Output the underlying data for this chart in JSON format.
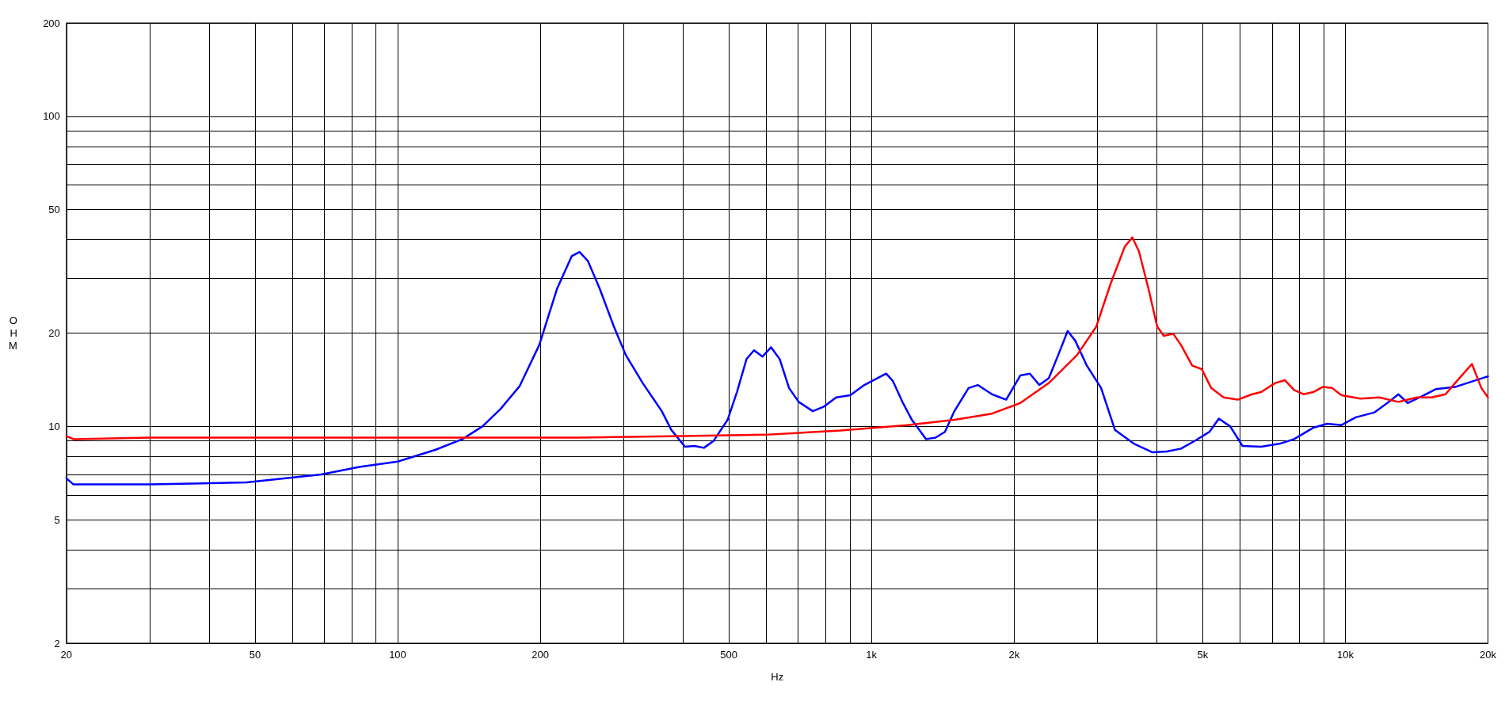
{
  "chart_data": {
    "type": "line",
    "xlabel": "Hz",
    "ylabel": "OHM",
    "log": "xy",
    "grid": true,
    "marker": "none",
    "line_style": "solid",
    "xlim": [
      20,
      20000
    ],
    "ylim": [
      2,
      200
    ],
    "xticks": [
      20,
      {
        "value": 30,
        "label": null
      },
      {
        "value": 40,
        "label": null
      },
      50,
      {
        "value": 60,
        "label": null
      },
      {
        "value": 70,
        "label": null
      },
      {
        "value": 80,
        "label": null
      },
      {
        "value": 90,
        "label": null
      },
      100,
      200,
      {
        "value": 300,
        "label": null
      },
      {
        "value": 400,
        "label": null
      },
      500,
      {
        "value": 600,
        "label": null
      },
      {
        "value": 700,
        "label": null
      },
      {
        "value": 800,
        "label": null
      },
      {
        "value": 900,
        "label": null
      },
      {
        "value": 1000,
        "label": "1k"
      },
      {
        "value": 2000,
        "label": "2k"
      },
      {
        "value": 3000,
        "label": null
      },
      {
        "value": 4000,
        "label": null
      },
      {
        "value": 5000,
        "label": "5k"
      },
      {
        "value": 6000,
        "label": null
      },
      {
        "value": 7000,
        "label": null
      },
      {
        "value": 8000,
        "label": null
      },
      {
        "value": 9000,
        "label": null
      },
      {
        "value": 10000,
        "label": "10k"
      },
      {
        "value": 20000,
        "label": "20k"
      }
    ],
    "yticks": [
      2,
      {
        "value": 3,
        "label": null
      },
      {
        "value": 4,
        "label": null
      },
      5,
      {
        "value": 6,
        "label": null
      },
      {
        "value": 7,
        "label": null
      },
      {
        "value": 8,
        "label": null
      },
      {
        "value": 9,
        "label": null
      },
      10,
      20,
      {
        "value": 30,
        "label": null
      },
      {
        "value": 40,
        "label": null
      },
      50,
      {
        "value": 60,
        "label": null
      },
      {
        "value": 70,
        "label": null
      },
      {
        "value": 80,
        "label": null
      },
      {
        "value": 90,
        "label": null
      },
      100,
      200
    ],
    "series": [
      {
        "color": "#0000ff",
        "x": [
          20,
          20.7,
          30,
          48,
          69,
          83,
          100,
          120,
          137,
          151,
          165,
          181,
          199,
          217,
          233,
          242,
          252,
          267,
          286,
          303,
          329,
          361,
          378,
          404,
          423,
          443,
          464,
          497,
          520,
          545,
          565,
          589,
          614,
          640,
          670,
          702,
          752,
          795,
          842,
          902,
          966,
          1074,
          1110,
          1162,
          1217,
          1304,
          1365,
          1429,
          1496,
          1603,
          1676,
          1796,
          1924,
          2061,
          2159,
          2260,
          2367,
          2478,
          2594,
          2692,
          2848,
          3052,
          3264,
          3577,
          3920,
          4200,
          4500,
          4822,
          5166,
          5409,
          5716,
          6067,
          6641,
          7278,
          7795,
          8550,
          9160,
          9815,
          10517,
          11530,
          12355,
          12940,
          13540,
          14500,
          15540,
          17030,
          20000
        ],
        "values": [
          6.8,
          6.5,
          6.5,
          6.6,
          7.0,
          7.4,
          7.7,
          8.4,
          9.1,
          10.0,
          11.4,
          13.5,
          18.3,
          27.8,
          35.4,
          36.5,
          34.2,
          27.8,
          21.0,
          17.0,
          13.8,
          11.2,
          9.75,
          8.6,
          8.65,
          8.53,
          8.97,
          10.5,
          12.9,
          16.5,
          17.6,
          16.8,
          18.0,
          16.5,
          13.3,
          12.0,
          11.2,
          11.6,
          12.4,
          12.6,
          13.6,
          14.8,
          14.0,
          12.0,
          10.5,
          9.1,
          9.2,
          9.6,
          11.2,
          13.3,
          13.6,
          12.7,
          12.2,
          14.6,
          14.8,
          13.6,
          14.3,
          17.0,
          20.3,
          18.9,
          15.7,
          13.3,
          9.75,
          8.8,
          8.25,
          8.3,
          8.48,
          9.0,
          9.6,
          10.6,
          10.0,
          8.65,
          8.6,
          8.8,
          9.1,
          9.9,
          10.2,
          10.1,
          10.7,
          11.1,
          12.0,
          12.7,
          11.9,
          12.5,
          13.2,
          13.4,
          14.5
        ]
      },
      {
        "color": "#ff0000",
        "x": [
          20,
          20.7,
          30,
          95,
          238,
          378,
          597,
          861,
          1189,
          1496,
          1796,
          2061,
          2367,
          2716,
          2982,
          3195,
          3424,
          3552,
          3668,
          3842,
          4008,
          4138,
          4334,
          4500,
          4752,
          4977,
          5212,
          5534,
          5930,
          6353,
          6641,
          7111,
          7450,
          7795,
          8163,
          8550,
          8953,
          9380,
          9815,
          10760,
          11800,
          12940,
          14170,
          15190,
          16270,
          17190,
          18500,
          19370,
          20000
        ],
        "values": [
          9.3,
          9.1,
          9.2,
          9.2,
          9.2,
          9.3,
          9.4,
          9.7,
          10.1,
          10.5,
          11.0,
          11.9,
          13.8,
          17.0,
          21.0,
          28.8,
          38.0,
          40.7,
          36.7,
          27.8,
          21.0,
          19.6,
          19.9,
          18.3,
          15.7,
          15.3,
          13.3,
          12.4,
          12.2,
          12.7,
          12.9,
          13.8,
          14.1,
          13.1,
          12.7,
          12.9,
          13.4,
          13.3,
          12.6,
          12.3,
          12.4,
          12.0,
          12.4,
          12.4,
          12.7,
          14.0,
          15.9,
          13.3,
          12.4
        ]
      }
    ]
  }
}
